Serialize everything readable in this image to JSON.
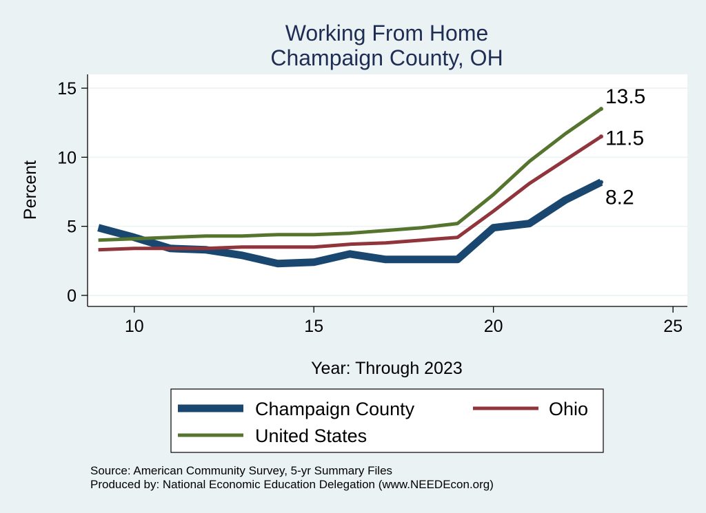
{
  "chart_data": {
    "type": "line",
    "title": [
      "Working From Home",
      "Champaign County, OH"
    ],
    "xlabel": "Year: Through 2023",
    "ylabel": "Percent",
    "xlim": [
      8.7,
      25.4
    ],
    "ylim": [
      -0.8,
      16
    ],
    "xticks": [
      10,
      15,
      20,
      25
    ],
    "yticks": [
      0,
      5,
      10,
      15
    ],
    "x": [
      9,
      10,
      11,
      12,
      13,
      14,
      15,
      16,
      17,
      18,
      19,
      20,
      21,
      22,
      23
    ],
    "series": [
      {
        "name": "Champaign County",
        "color": "#1A476F",
        "values": [
          4.9,
          4.2,
          3.4,
          3.3,
          2.9,
          2.3,
          2.4,
          3.0,
          2.6,
          2.6,
          2.6,
          4.9,
          5.2,
          6.9,
          8.2
        ],
        "end_label": "8.2"
      },
      {
        "name": "Ohio",
        "color": "#90353B",
        "values": [
          3.3,
          3.4,
          3.4,
          3.4,
          3.5,
          3.5,
          3.5,
          3.7,
          3.8,
          4.0,
          4.2,
          6.1,
          8.1,
          9.8,
          11.5
        ],
        "end_label": "11.5"
      },
      {
        "name": "United States",
        "color": "#55752F",
        "values": [
          4.0,
          4.1,
          4.2,
          4.3,
          4.3,
          4.4,
          4.4,
          4.5,
          4.7,
          4.9,
          5.2,
          7.3,
          9.7,
          11.7,
          13.5
        ],
        "end_label": "13.5"
      }
    ],
    "legend": {
      "position": "bottom"
    },
    "notes": [
      "Source: American Community Survey, 5-yr Summary Files",
      "Produced by: National Economic Education Delegation (www.NEEDEcon.org)"
    ]
  }
}
